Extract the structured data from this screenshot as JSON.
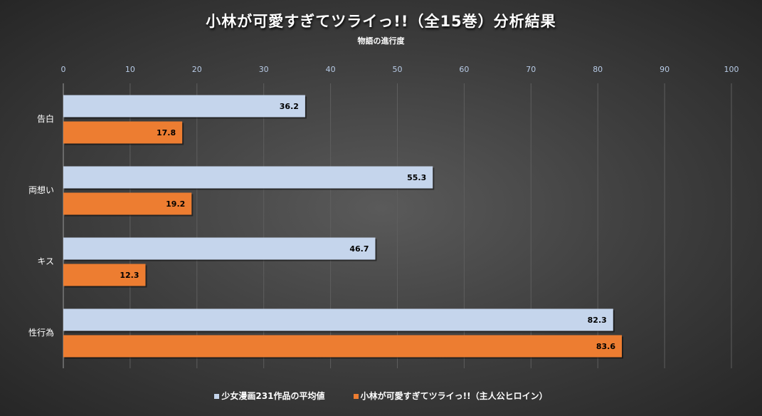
{
  "chart_data": {
    "type": "bar",
    "orientation": "horizontal",
    "title": "小林が可愛すぎてツライっ!!（全15巻）分析結果",
    "subtitle": "物語の進行度",
    "categories": [
      "告白",
      "両想い",
      "キス",
      "性行為"
    ],
    "series": [
      {
        "name": "少女漫画231作品の平均値",
        "values": [
          36.2,
          55.3,
          46.7,
          82.3
        ],
        "color": "#c5d5ec"
      },
      {
        "name": "小林が可愛すぎてツライっ!!（主人公ヒロイン）",
        "values": [
          17.8,
          19.2,
          12.3,
          83.6
        ],
        "color": "#ed7d31"
      }
    ],
    "xlim": [
      0,
      100
    ],
    "xticks": [
      "0",
      "10",
      "20",
      "30",
      "40",
      "50",
      "60",
      "70",
      "80",
      "90",
      "100"
    ],
    "xaxis_position": "top",
    "grid": true,
    "legend": "bottom",
    "data_labels": true
  }
}
